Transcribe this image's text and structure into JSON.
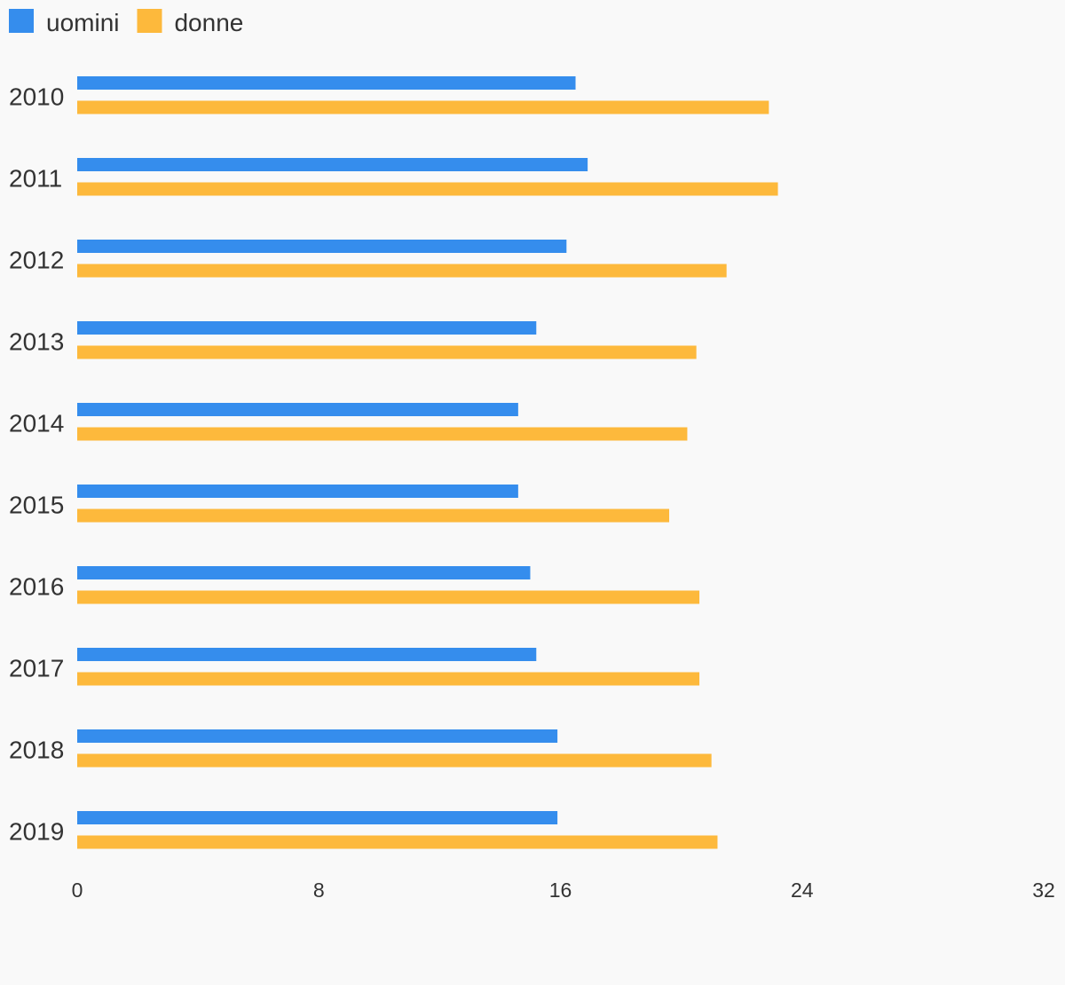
{
  "chart_data": {
    "type": "bar",
    "orientation": "horizontal",
    "categories": [
      "2010",
      "2011",
      "2012",
      "2013",
      "2014",
      "2015",
      "2016",
      "2017",
      "2018",
      "2019"
    ],
    "series": [
      {
        "name": "uomini",
        "color": "#358ded",
        "values": [
          16.5,
          16.9,
          16.2,
          15.2,
          14.6,
          14.6,
          15.0,
          15.2,
          15.9,
          15.9
        ]
      },
      {
        "name": "donne",
        "color": "#fdb93c",
        "values": [
          22.9,
          23.2,
          21.5,
          20.5,
          20.2,
          19.6,
          20.6,
          20.6,
          21.0,
          21.2
        ]
      }
    ],
    "xlim": [
      0,
      32
    ],
    "xticks": [
      "0",
      "8",
      "16",
      "24",
      "32"
    ],
    "grid": false,
    "legend_position": "top-left"
  }
}
